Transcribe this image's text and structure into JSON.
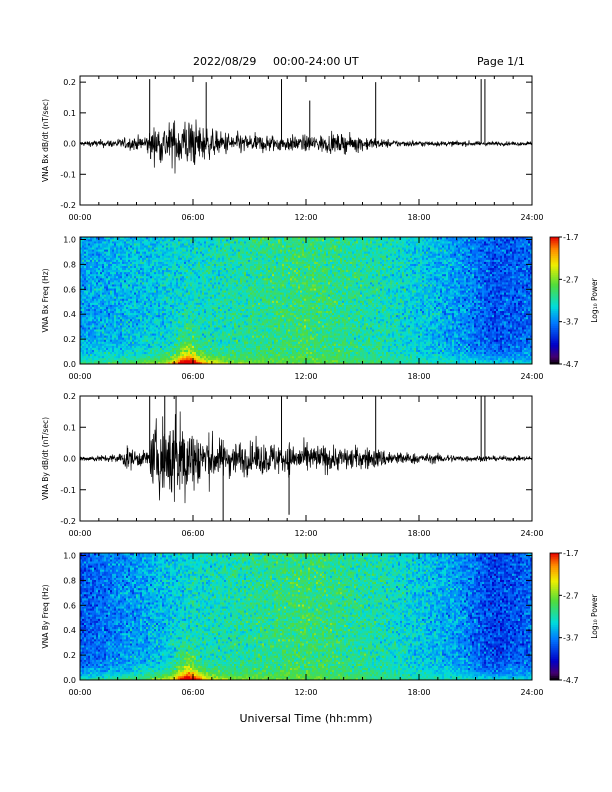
{
  "header": {
    "date": "2022/08/29",
    "range": "00:00-24:00 UT",
    "page": "Page 1/1"
  },
  "xlabel": "Universal Time (hh:mm)",
  "x_ticks": [
    "00:00",
    "06:00",
    "12:00",
    "18:00",
    "24:00"
  ],
  "colorbar": {
    "label": "Log₁₀ Power",
    "ticks": [
      "-1.7",
      "-2.7",
      "-3.7",
      "-4.7"
    ],
    "range": [
      -4.7,
      -1.7
    ]
  },
  "chart_data": [
    {
      "type": "line",
      "name": "panel-bx-waveform",
      "ylabel": "VNA Bx dB/dt (nT/sec)",
      "xlim": [
        0,
        24
      ],
      "ylim": [
        -0.2,
        0.22
      ],
      "y_ticks": [
        "0.2",
        "0.1",
        "0.0",
        "-0.1",
        "-0.2"
      ],
      "envelope": {
        "x": [
          0,
          1,
          2,
          3,
          3.7,
          4,
          4.5,
          5,
          5.5,
          6,
          6.5,
          7,
          7.5,
          8,
          9,
          10,
          11,
          12,
          13,
          14,
          15,
          16,
          17,
          18,
          19,
          20,
          21,
          22,
          23,
          24
        ],
        "amp": [
          0.01,
          0.015,
          0.02,
          0.03,
          0.05,
          0.08,
          0.09,
          0.1,
          0.12,
          0.11,
          0.08,
          0.06,
          0.05,
          0.05,
          0.04,
          0.04,
          0.035,
          0.035,
          0.04,
          0.04,
          0.035,
          0.02,
          0.015,
          0.012,
          0.01,
          0.01,
          0.01,
          0.008,
          0.008,
          0.008
        ]
      },
      "spikes": [
        [
          3.7,
          0.21
        ],
        [
          3.75,
          -0.05
        ],
        [
          6.7,
          0.2
        ],
        [
          10.7,
          0.21
        ],
        [
          12.2,
          0.14
        ],
        [
          15.7,
          0.2
        ],
        [
          21.3,
          0.21
        ],
        [
          21.5,
          0.21
        ]
      ]
    },
    {
      "type": "heatmap",
      "name": "panel-bx-spectrogram",
      "ylabel": "VNA Bx Freq (Hz)",
      "xlim": [
        0,
        24
      ],
      "ylim": [
        0,
        1.02
      ],
      "y_ticks": [
        "1.0",
        "0.8",
        "0.6",
        "0.4",
        "0.2",
        "0.0"
      ],
      "zlim": [
        -4.7,
        -1.7
      ],
      "level": {
        "x": [
          0,
          2,
          4,
          6,
          8,
          10,
          12,
          14,
          16,
          18,
          20,
          22,
          24
        ],
        "log_power": [
          -3.6,
          -3.5,
          -3.4,
          -3.3,
          -3.2,
          -3.1,
          -3.0,
          -3.1,
          -3.2,
          -3.4,
          -3.6,
          -3.9,
          -3.8
        ]
      },
      "enhancement": {
        "x": [
          0,
          3,
          4,
          5,
          5.5,
          6,
          7,
          8,
          10,
          12,
          14,
          16,
          18,
          24
        ],
        "log_power_low_freq": [
          -3.0,
          -2.8,
          -2.6,
          -2.2,
          -1.9,
          -1.8,
          -2.2,
          -2.6,
          -2.7,
          -2.8,
          -2.8,
          -3.0,
          -3.1,
          -3.3
        ]
      }
    },
    {
      "type": "line",
      "name": "panel-by-waveform",
      "ylabel": "VNA By dB/dt (nT/sec)",
      "xlim": [
        0,
        24
      ],
      "ylim": [
        -0.2,
        0.2
      ],
      "y_ticks": [
        "0.2",
        "0.1",
        "0.0",
        "-0.1",
        "-0.2"
      ],
      "envelope": {
        "x": [
          0,
          1,
          2,
          2.5,
          3,
          3.5,
          3.8,
          4,
          4.5,
          5,
          5.5,
          6,
          6.5,
          7,
          7.5,
          8,
          9,
          10,
          11,
          12,
          13,
          14,
          15,
          16,
          17,
          18,
          19,
          20,
          21,
          22,
          23,
          24
        ],
        "amp": [
          0.01,
          0.012,
          0.02,
          0.05,
          0.04,
          0.03,
          0.09,
          0.15,
          0.2,
          0.2,
          0.2,
          0.15,
          0.12,
          0.1,
          0.08,
          0.08,
          0.07,
          0.07,
          0.07,
          0.06,
          0.06,
          0.05,
          0.05,
          0.04,
          0.03,
          0.02,
          0.02,
          0.015,
          0.012,
          0.01,
          0.01,
          0.01
        ]
      },
      "spikes": [
        [
          3.7,
          0.2
        ],
        [
          4.5,
          0.2
        ],
        [
          5.1,
          0.2
        ],
        [
          7.6,
          -0.2
        ],
        [
          10.7,
          0.2
        ],
        [
          11.1,
          -0.18
        ],
        [
          15.7,
          0.2
        ],
        [
          21.3,
          0.2
        ],
        [
          21.5,
          0.2
        ]
      ]
    },
    {
      "type": "heatmap",
      "name": "panel-by-spectrogram",
      "ylabel": "VNA By Freq (Hz)",
      "xlim": [
        0,
        24
      ],
      "ylim": [
        0,
        1.02
      ],
      "y_ticks": [
        "1.0",
        "0.8",
        "0.6",
        "0.4",
        "0.2",
        "0.0"
      ],
      "zlim": [
        -4.7,
        -1.7
      ],
      "level": {
        "x": [
          0,
          2,
          4,
          6,
          8,
          10,
          12,
          14,
          16,
          18,
          20,
          22,
          24
        ],
        "log_power": [
          -3.9,
          -3.7,
          -3.5,
          -3.3,
          -3.2,
          -3.1,
          -3.0,
          -3.1,
          -3.2,
          -3.4,
          -3.6,
          -4.0,
          -3.8
        ]
      },
      "enhancement": {
        "x": [
          0,
          3,
          4,
          5,
          5.5,
          6,
          7,
          8,
          10,
          12,
          14,
          16,
          18,
          24
        ],
        "log_power_low_freq": [
          -3.1,
          -2.9,
          -2.6,
          -2.3,
          -2.0,
          -1.9,
          -2.3,
          -2.6,
          -2.7,
          -2.8,
          -2.8,
          -3.0,
          -3.1,
          -3.3
        ]
      }
    }
  ]
}
